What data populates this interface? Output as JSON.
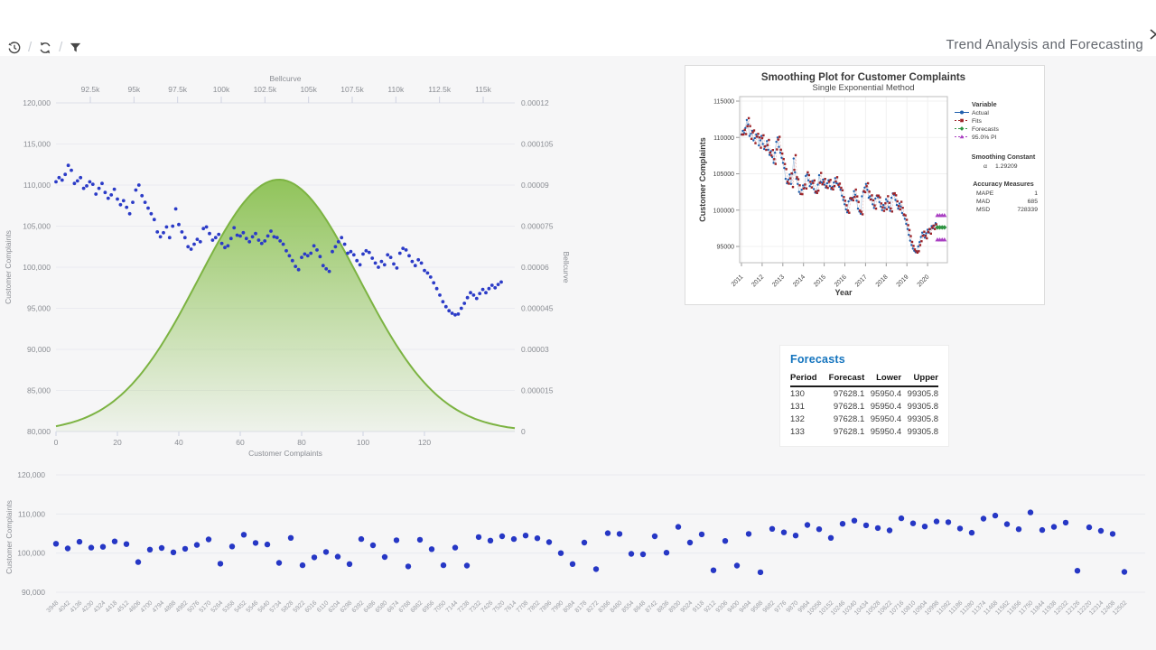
{
  "header": {
    "title": "Trend Analysis and Forecasting",
    "separator": "/",
    "icons": [
      "history",
      "refresh",
      "filter"
    ],
    "corner_icon": "chevron-right"
  },
  "colors": {
    "background": "#f6f6f7",
    "scatter_blue": "#2b3bc7",
    "bottom_scatter_blue": "#2637c5",
    "bell_green_fill": "#8bc152",
    "bell_green_stroke": "#7cb342",
    "minitab_actual": "#1f5fae",
    "minitab_fits": "#9e2428",
    "minitab_forecasts": "#2e9441",
    "minitab_pi": "#a93fc2",
    "forecast_title_blue": "#1474be"
  },
  "chart_data": [
    {
      "id": "trend-with-bellcurve",
      "type": "scatter+area",
      "x_axis": {
        "label": "Customer Complaints",
        "ticks": [
          0,
          20,
          40,
          60,
          80,
          100,
          120
        ]
      },
      "y_axis": {
        "label": "Customer Complaints",
        "ticks": [
          80000,
          85000,
          90000,
          95000,
          100000,
          105000,
          110000,
          115000,
          120000
        ],
        "range": [
          80000,
          120000
        ]
      },
      "top_axis": {
        "label": "Bellcurve",
        "tick_labels": [
          "92.5k",
          "95k",
          "97.5k",
          "100k",
          "102.5k",
          "105k",
          "107.5k",
          "110k",
          "112.5k",
          "115k"
        ],
        "tick_values": [
          92500,
          95000,
          97500,
          100000,
          102500,
          105000,
          107500,
          110000,
          112500,
          115000
        ],
        "range": [
          90500,
          116800
        ]
      },
      "right_axis": {
        "label": "Bellcurve",
        "tick_labels": [
          "0",
          "0.000015",
          "0.00003",
          "0.000045",
          "0.00006",
          "0.000075",
          "0.00009",
          "0.000105",
          "0.00012"
        ],
        "range": [
          0,
          0.00012
        ]
      },
      "grid": "horizontal",
      "series": {
        "name": "Customer Complaints",
        "values": [
          110400,
          110900,
          110600,
          111300,
          112400,
          111800,
          110200,
          110500,
          110900,
          109600,
          109900,
          110400,
          110100,
          108900,
          109600,
          110200,
          109100,
          108400,
          108800,
          109500,
          108300,
          107600,
          108100,
          107300,
          106500,
          107900,
          109400,
          110000,
          108700,
          107900,
          107200,
          106500,
          105800,
          104300,
          103700,
          104200,
          104900,
          103600,
          105000,
          107100,
          105200,
          104300,
          103600,
          102500,
          102200,
          102800,
          103400,
          103100,
          104700,
          104900,
          104100,
          103300,
          103600,
          104000,
          102900,
          102400,
          102600,
          103500,
          104800,
          103900,
          103800,
          104200,
          103500,
          103100,
          103700,
          104100,
          103300,
          102900,
          103200,
          103800,
          104400,
          103700,
          103600,
          103200,
          102800,
          102000,
          101400,
          100800,
          100100,
          99700,
          101200,
          101600,
          101400,
          101700,
          102600,
          102100,
          101300,
          100200,
          99800,
          99500,
          101900,
          102500,
          103100,
          103600,
          102800,
          101700,
          101900,
          101500,
          100800,
          100300,
          101600,
          102000,
          101800,
          101100,
          100500,
          100000,
          100700,
          100300,
          101500,
          101200,
          100400,
          99900,
          101700,
          102300,
          102100,
          101400,
          100700,
          100200,
          100900,
          100500,
          99600,
          99300,
          98800,
          98100,
          97400,
          96600,
          95800,
          95200,
          94700,
          94400,
          94200,
          94300,
          95000,
          95600,
          96300,
          96900,
          96600,
          96200,
          96800,
          97300,
          96900,
          97400,
          97800,
          97500,
          97900,
          98200
        ]
      },
      "bellcurve": {
        "mean": 103300,
        "sigma": 4600,
        "peak_density": 9.2e-05
      }
    },
    {
      "id": "smoothing-plot",
      "type": "line",
      "title": "Smoothing Plot for Customer Complaints",
      "subtitle": "Single Exponential Method",
      "xlabel": "Year",
      "ylabel": "Customer Complaints",
      "x_ticks": [
        "2011",
        "2012",
        "2013",
        "2014",
        "2015",
        "2016",
        "2017",
        "2018",
        "2019",
        "2020"
      ],
      "y_ticks": [
        95000,
        100000,
        105000,
        110000,
        115000
      ],
      "y_range": [
        93000,
        116000
      ],
      "legend_title": "Variable",
      "legend": [
        "Actual",
        "Fits",
        "Forecasts",
        "95.0% PI"
      ],
      "smoothing_constant_label": "Smoothing Constant",
      "alpha_label": "α",
      "alpha_value": "1.29209",
      "accuracy_title": "Accuracy Measures",
      "accuracy": [
        [
          "MAPE",
          "1"
        ],
        [
          "MAD",
          "685"
        ],
        [
          "MSD",
          "728339"
        ]
      ],
      "series_source": "chart_data[0].series.values (Actual); Fits = single exponential smoothing of Actual",
      "forecast": {
        "value": 97628.1,
        "lower": 95950.4,
        "upper": 99305.8,
        "periods": [
          130,
          131,
          132,
          133
        ]
      }
    },
    {
      "id": "complaints-scatter",
      "type": "scatter",
      "ylabel": "Customer Complaints",
      "y_ticks": [
        90000,
        100000,
        110000,
        120000
      ],
      "y_range": [
        88000,
        121000
      ],
      "grid": "horizontal",
      "categories": [
        3948,
        4042,
        4136,
        4230,
        4324,
        4418,
        4512,
        4606,
        4700,
        4794,
        4888,
        4982,
        5076,
        5170,
        5264,
        5358,
        5452,
        5546,
        5640,
        5734,
        5828,
        5922,
        6016,
        6110,
        6204,
        6298,
        6392,
        6486,
        6580,
        6674,
        6768,
        6862,
        6956,
        7050,
        7144,
        7238,
        7332,
        7426,
        7520,
        7614,
        7708,
        7802,
        7896,
        7990,
        8084,
        8178,
        8272,
        8366,
        8460,
        8554,
        8648,
        8742,
        8836,
        8930,
        9024,
        9118,
        9212,
        9306,
        9400,
        9494,
        9588,
        9682,
        9776,
        9870,
        9964,
        10058,
        10152,
        10246,
        10340,
        10434,
        10528,
        10622,
        10716,
        10810,
        10904,
        10998,
        11092,
        11186,
        11280,
        11374,
        11468,
        11562,
        11656,
        11750,
        11844,
        11938,
        12032,
        12126,
        12220,
        12314,
        12408,
        12502
      ],
      "values": [
        102400,
        101200,
        102900,
        101400,
        101600,
        103000,
        102300,
        97700,
        100900,
        101300,
        100200,
        101100,
        102100,
        103500,
        97300,
        101700,
        104700,
        102600,
        102200,
        97500,
        103900,
        96900,
        98900,
        100300,
        99100,
        97200,
        103600,
        102000,
        99000,
        103300,
        96600,
        103400,
        101000,
        96900,
        101400,
        96800,
        104100,
        103200,
        104300,
        103600,
        104500,
        103800,
        102800,
        100000,
        97200,
        102700,
        95900,
        105100,
        104900,
        99800,
        99700,
        104300,
        100100,
        106700,
        102700,
        104800,
        95600,
        103100,
        96800,
        104900,
        95100,
        106200,
        105300,
        104500,
        107200,
        106100,
        103900,
        107500,
        108300,
        107100,
        106400,
        105800,
        108900,
        107600,
        106800,
        108100,
        107900,
        106300,
        105200,
        108800,
        109600,
        107400,
        106100,
        110400,
        105900,
        106700,
        107800,
        95500,
        106600,
        105700,
        104900,
        95200
      ]
    }
  ],
  "forecast_table": {
    "title": "Forecasts",
    "columns": [
      "Period",
      "Forecast",
      "Lower",
      "Upper"
    ],
    "rows": [
      [
        "130",
        "97628.1",
        "95950.4",
        "99305.8"
      ],
      [
        "131",
        "97628.1",
        "95950.4",
        "99305.8"
      ],
      [
        "132",
        "97628.1",
        "95950.4",
        "99305.8"
      ],
      [
        "133",
        "97628.1",
        "95950.4",
        "99305.8"
      ]
    ]
  }
}
